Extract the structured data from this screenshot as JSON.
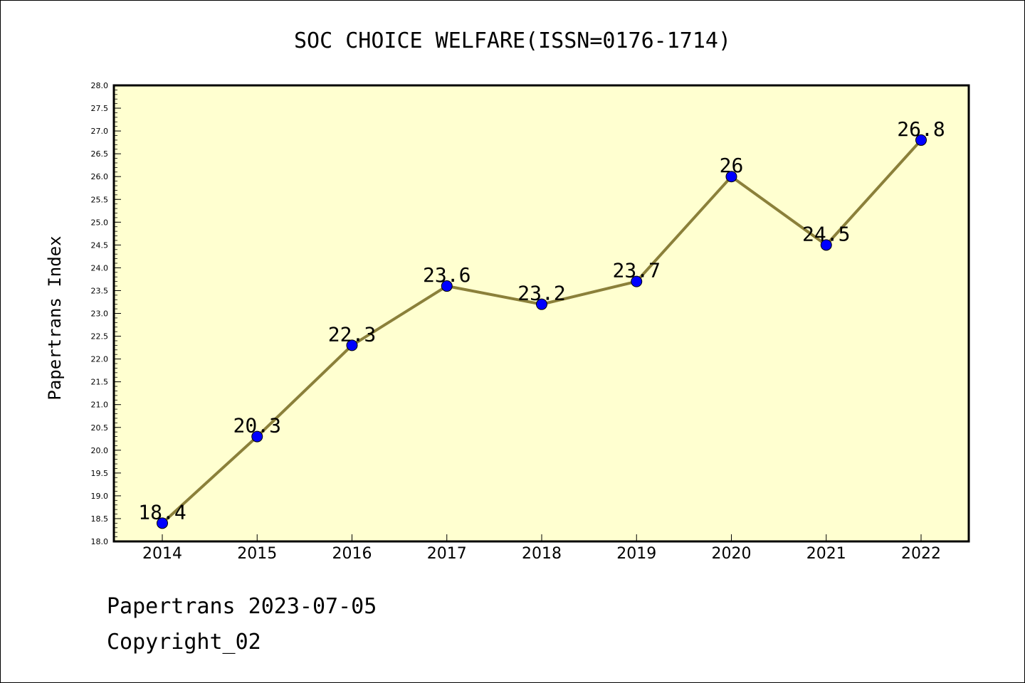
{
  "chart_data": {
    "type": "line",
    "title": "SOC CHOICE WELFARE(ISSN=0176-1714)",
    "xlabel": "",
    "ylabel": "Papertrans Index",
    "categories": [
      "2014",
      "2015",
      "2016",
      "2017",
      "2018",
      "2019",
      "2020",
      "2021",
      "2022"
    ],
    "series": [
      {
        "values": [
          18.4,
          20.3,
          22.3,
          23.6,
          23.2,
          23.7,
          26.0,
          24.5,
          26.8
        ]
      }
    ],
    "data_labels": [
      "18.4",
      "20.3",
      "22.3",
      "23.6",
      "23.2",
      "23.7",
      "26",
      "24.5",
      "26.8"
    ],
    "ylim": [
      18.0,
      28.0
    ],
    "y_ticks": [
      "18.0",
      "18.5",
      "19.0",
      "19.5",
      "20.0",
      "20.5",
      "21.0",
      "21.5",
      "22.0",
      "22.5",
      "23.0",
      "23.5",
      "24.0",
      "24.5",
      "25.0",
      "25.5",
      "26.0",
      "26.5",
      "27.0",
      "27.5",
      "28.0"
    ],
    "grid": false,
    "colors": {
      "plot_background": "#ffffd0",
      "line": "#8b803a",
      "marker": "#0000ff"
    }
  },
  "footer": {
    "line1": "Papertrans 2023-07-05",
    "line2": "Copyright_02"
  }
}
